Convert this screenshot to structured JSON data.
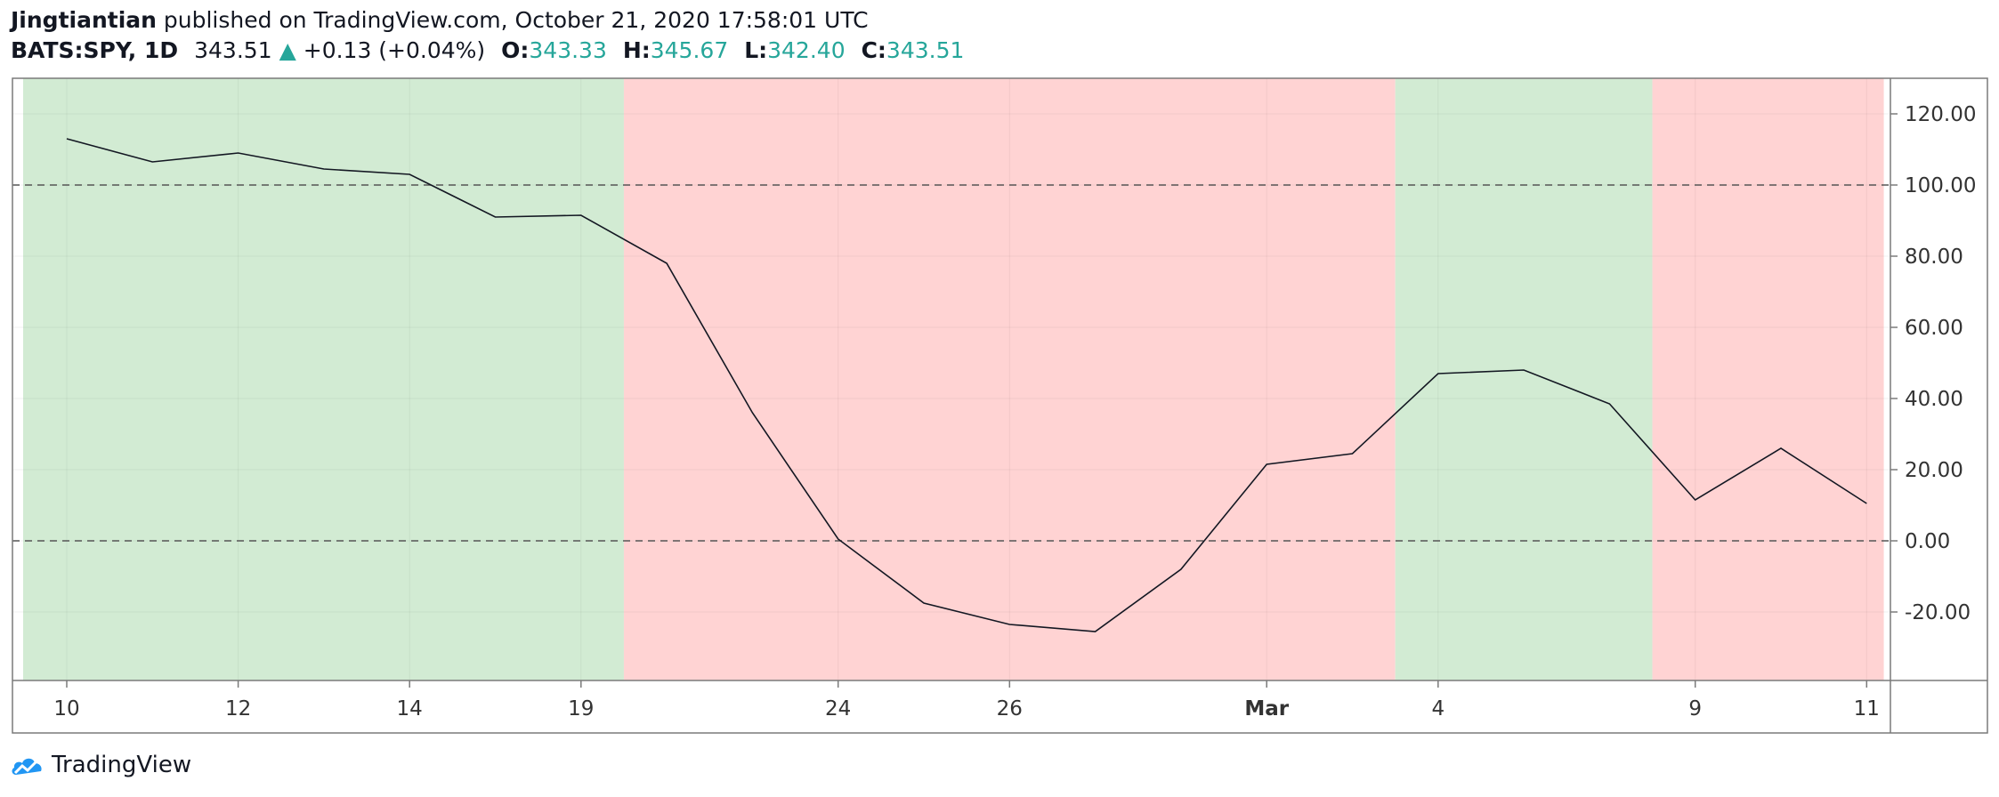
{
  "header": {
    "author": "Jingtiantian",
    "published_text": "published on TradingView.com, October 21, 2020 17:58:01 UTC",
    "symbol": "BATS:SPY, 1D",
    "last_price": "343.51",
    "change_arrow": "▲",
    "change": "+0.13 (+0.04%)",
    "open_label": "O:",
    "open_value": "343.33",
    "high_label": "H:",
    "high_value": "345.67",
    "low_label": "L:",
    "low_value": "342.40",
    "close_label": "C:",
    "close_value": "343.51"
  },
  "footer": {
    "brand": "TradingView"
  },
  "colors": {
    "accent": "#26a69a",
    "green_band": "#d2ebd3",
    "red_band": "#ffd3d3",
    "line": "#131722",
    "grid": "#e8e8e8"
  },
  "chart_data": {
    "type": "line",
    "title": "",
    "xlabel": "",
    "ylabel": "",
    "x_tick_labels": [
      "10",
      "12",
      "14",
      "19",
      "24",
      "26",
      "Mar",
      "4",
      "9",
      "11"
    ],
    "x_tick_index": [
      0,
      2,
      4,
      6,
      9,
      11,
      14,
      16,
      19,
      21
    ],
    "y_ticks": [
      "120.00",
      "100.00",
      "80.00",
      "60.00",
      "40.00",
      "20.00",
      "0.00",
      "-20.00"
    ],
    "ylim": [
      -40,
      130
    ],
    "reference_lines": [
      100,
      0
    ],
    "grid": true,
    "series": [
      {
        "values": [
          113,
          106.5,
          109,
          104.5,
          103,
          91,
          91.5,
          78,
          36,
          0.5,
          -17.5,
          -23.5,
          -25.5,
          -8,
          21.5,
          24.5,
          47,
          48,
          38.5,
          11.5,
          26,
          10.5
        ]
      }
    ],
    "bands": [
      {
        "start": -0.5,
        "end": 6.5,
        "color": "green"
      },
      {
        "start": 6.5,
        "end": 15.5,
        "color": "red"
      },
      {
        "start": 15.5,
        "end": 18.5,
        "color": "green"
      },
      {
        "start": 18.5,
        "end": 21.2,
        "color": "red"
      }
    ]
  }
}
